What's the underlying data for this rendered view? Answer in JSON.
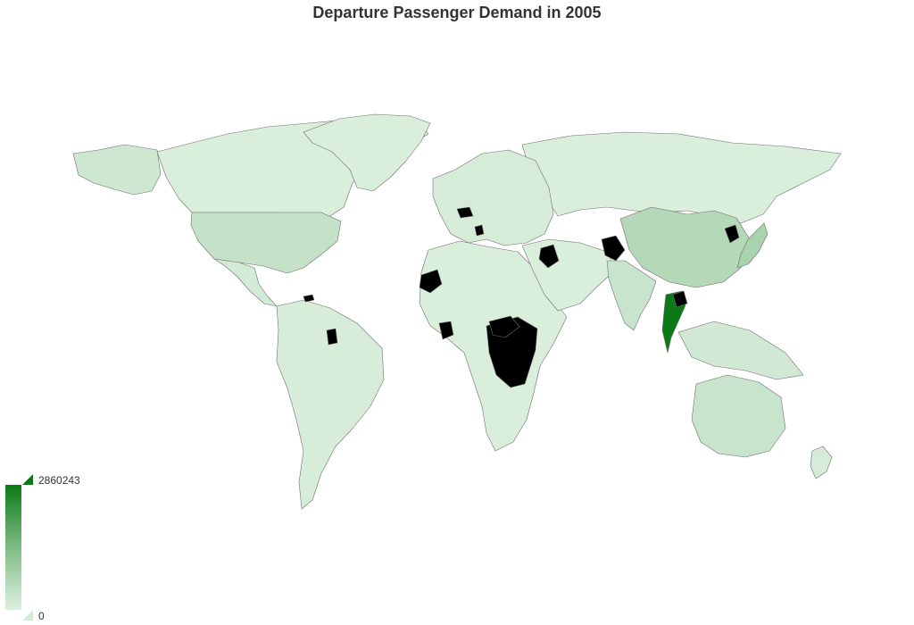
{
  "title": "Departure Passenger Demand in 2005",
  "legend": {
    "max_label": "2860243",
    "min_label": "0",
    "min_value": 0,
    "max_value": 2860243,
    "color_low": "#def0e0",
    "color_high": "#0b7a16"
  },
  "colors": {
    "no_data": "#000000",
    "border": "#6f6f6f",
    "background": "#ffffff"
  },
  "map_data": {
    "type": "choropleth",
    "metric": "departure passenger demand",
    "year": 2005,
    "regions": [
      {
        "name": "Canada",
        "level": 0.02
      },
      {
        "name": "Alaska",
        "level": 0.08
      },
      {
        "name": "Greenland",
        "level": 0.02
      },
      {
        "name": "United States",
        "level": 0.12
      },
      {
        "name": "Mexico",
        "level": 0.05
      },
      {
        "name": "South America",
        "level": 0.03
      },
      {
        "name": "Russia",
        "level": 0.02
      },
      {
        "name": "Europe",
        "level": 0.04
      },
      {
        "name": "Africa",
        "level": 0.02
      },
      {
        "name": "Middle East",
        "level": 0.02
      },
      {
        "name": "China",
        "level": 0.2
      },
      {
        "name": "India",
        "level": 0.1
      },
      {
        "name": "Japan",
        "level": 0.25
      },
      {
        "name": "Thailand",
        "level": 1.0
      },
      {
        "name": "Southeast Asia",
        "level": 0.06
      },
      {
        "name": "Australia",
        "level": 0.1
      },
      {
        "name": "New Zealand",
        "level": 0.04
      }
    ],
    "no_data_regions": [
      "Western Sahara",
      "DR Congo",
      "Central African Republic",
      "Côte d'Ivoire",
      "Iraq",
      "Afghanistan",
      "North Korea",
      "Cambodia",
      "Czech Republic",
      "Serbia",
      "Haiti",
      "Guyana"
    ]
  }
}
